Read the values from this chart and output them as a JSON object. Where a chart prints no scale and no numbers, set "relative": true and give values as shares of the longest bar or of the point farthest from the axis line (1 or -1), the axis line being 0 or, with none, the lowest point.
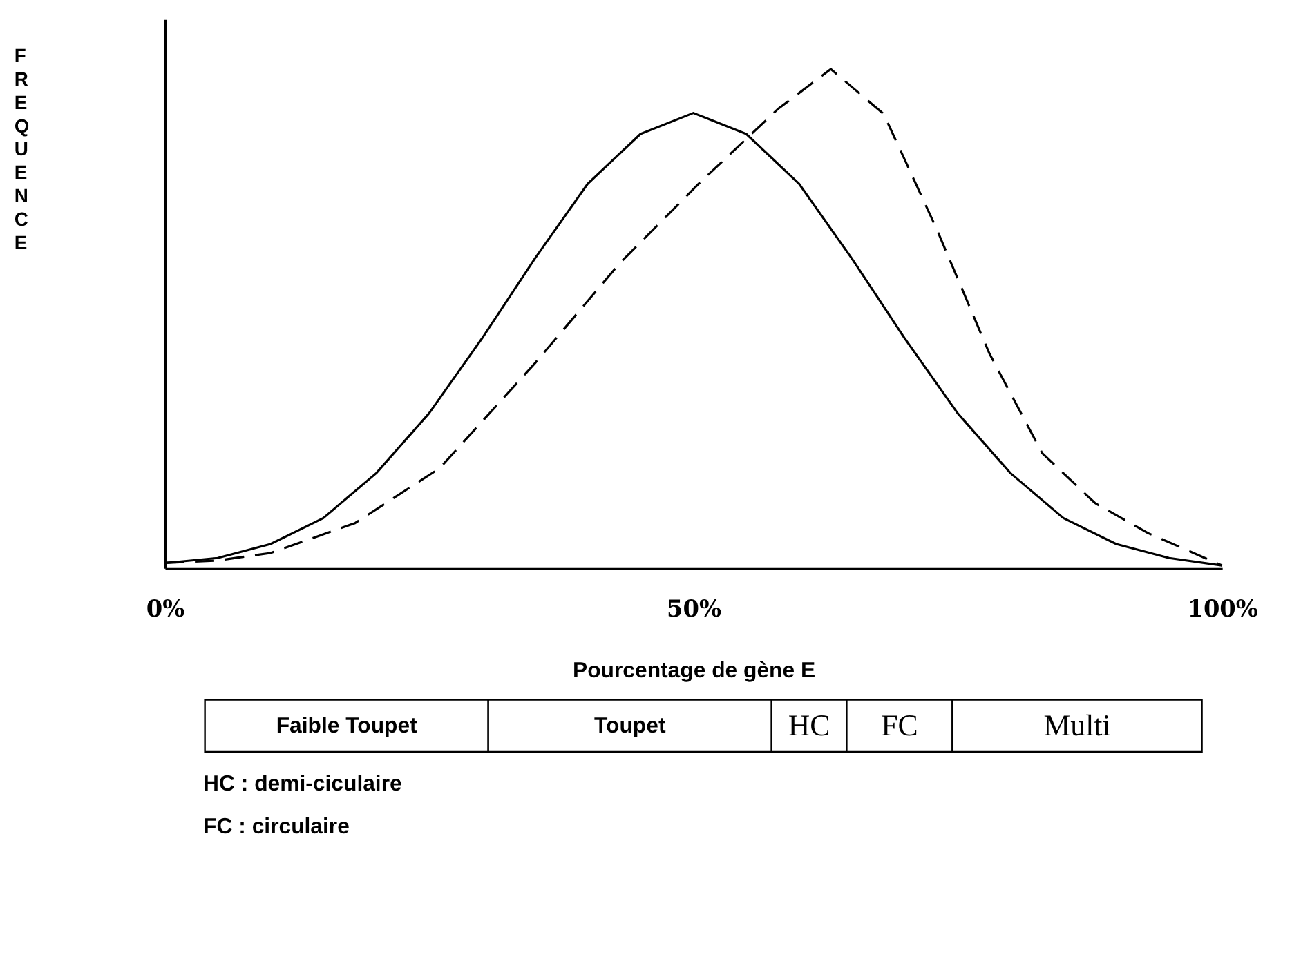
{
  "chart_data": {
    "type": "line",
    "relative": true,
    "xlabel": "Pourcentage de gène E",
    "ylabel": "FREQUENCE",
    "xlim": [
      0,
      100
    ],
    "xticks": [
      {
        "value": 0,
        "label": "0%"
      },
      {
        "value": 50,
        "label": "50%"
      },
      {
        "value": 100,
        "label": "100%"
      }
    ],
    "grid": false,
    "tick_labels": "x",
    "series": [
      {
        "color": "#000000",
        "line_style": "solid",
        "x": [
          0,
          5,
          10,
          15,
          20,
          25,
          30,
          35,
          40,
          45,
          50,
          55,
          60,
          65,
          70,
          75,
          80,
          85,
          90,
          95,
          100
        ],
        "values": [
          0.01,
          0.02,
          0.048,
          0.1,
          0.19,
          0.31,
          0.46,
          0.62,
          0.77,
          0.87,
          0.912,
          0.87,
          0.77,
          0.62,
          0.46,
          0.31,
          0.19,
          0.1,
          0.048,
          0.02,
          0.005
        ]
      },
      {
        "color": "#000000",
        "line_style": "dashed",
        "x": [
          0,
          5,
          10,
          18,
          26,
          35,
          43,
          50.5,
          58,
          63,
          68,
          73,
          78,
          83,
          88,
          93,
          100
        ],
        "values": [
          0.01,
          0.015,
          0.03,
          0.09,
          0.2,
          0.41,
          0.61,
          0.77,
          0.92,
          1,
          0.91,
          0.68,
          0.43,
          0.23,
          0.13,
          0.07,
          0.005
        ]
      }
    ],
    "annotations": [
      "Faible Toupet",
      "Toupet",
      "HC",
      "FC",
      "Multi",
      "HC : demi-ciculaire",
      "FC : circulaire"
    ]
  }
}
